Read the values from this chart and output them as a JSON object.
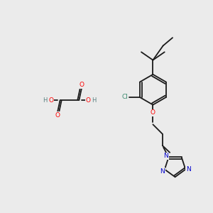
{
  "background_color": "#ebebeb",
  "fig_size": [
    3.0,
    3.0
  ],
  "dpi": 100,
  "bond_color": "#1a1a1a",
  "bond_lw": 1.3,
  "atom_colors": {
    "O": "#ff0000",
    "N": "#0000cc",
    "Cl": "#3a8a6e",
    "H": "#5a8080"
  }
}
